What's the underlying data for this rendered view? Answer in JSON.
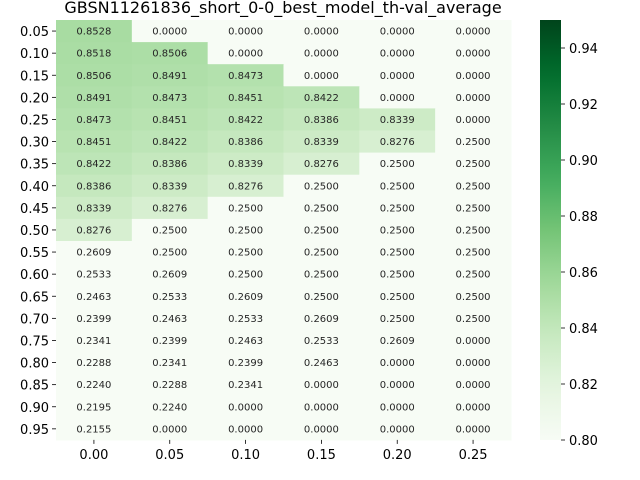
{
  "chart_data": {
    "type": "heatmap",
    "title": "GBSN11261836_short_0-0_best_model_th-val_average",
    "xlabel": "",
    "ylabel": "",
    "x_categories": [
      "0.00",
      "0.05",
      "0.10",
      "0.15",
      "0.20",
      "0.25"
    ],
    "y_categories": [
      "0.05",
      "0.10",
      "0.15",
      "0.20",
      "0.25",
      "0.30",
      "0.35",
      "0.40",
      "0.45",
      "0.50",
      "0.55",
      "0.60",
      "0.65",
      "0.70",
      "0.75",
      "0.80",
      "0.85",
      "0.90",
      "0.95"
    ],
    "values": [
      [
        "0.8528",
        "0.0000",
        "0.0000",
        "0.0000",
        "0.0000",
        "0.0000"
      ],
      [
        "0.8518",
        "0.8506",
        "0.0000",
        "0.0000",
        "0.0000",
        "0.0000"
      ],
      [
        "0.8506",
        "0.8491",
        "0.8473",
        "0.0000",
        "0.0000",
        "0.0000"
      ],
      [
        "0.8491",
        "0.8473",
        "0.8451",
        "0.8422",
        "0.0000",
        "0.0000"
      ],
      [
        "0.8473",
        "0.8451",
        "0.8422",
        "0.8386",
        "0.8339",
        "0.0000"
      ],
      [
        "0.8451",
        "0.8422",
        "0.8386",
        "0.8339",
        "0.8276",
        "0.2500"
      ],
      [
        "0.8422",
        "0.8386",
        "0.8339",
        "0.8276",
        "0.2500",
        "0.2500"
      ],
      [
        "0.8386",
        "0.8339",
        "0.8276",
        "0.2500",
        "0.2500",
        "0.2500"
      ],
      [
        "0.8339",
        "0.8276",
        "0.2500",
        "0.2500",
        "0.2500",
        "0.2500"
      ],
      [
        "0.8276",
        "0.2500",
        "0.2500",
        "0.2500",
        "0.2500",
        "0.2500"
      ],
      [
        "0.2609",
        "0.2500",
        "0.2500",
        "0.2500",
        "0.2500",
        "0.2500"
      ],
      [
        "0.2533",
        "0.2609",
        "0.2500",
        "0.2500",
        "0.2500",
        "0.2500"
      ],
      [
        "0.2463",
        "0.2533",
        "0.2609",
        "0.2500",
        "0.2500",
        "0.2500"
      ],
      [
        "0.2399",
        "0.2463",
        "0.2533",
        "0.2609",
        "0.2500",
        "0.2500"
      ],
      [
        "0.2341",
        "0.2399",
        "0.2463",
        "0.2533",
        "0.2609",
        "0.0000"
      ],
      [
        "0.2288",
        "0.2341",
        "0.2399",
        "0.2463",
        "0.0000",
        "0.0000"
      ],
      [
        "0.2240",
        "0.2288",
        "0.2341",
        "0.0000",
        "0.0000",
        "0.0000"
      ],
      [
        "0.2195",
        "0.2240",
        "0.0000",
        "0.0000",
        "0.0000",
        "0.0000"
      ],
      [
        "0.2155",
        "0.0000",
        "0.0000",
        "0.0000",
        "0.0000",
        "0.0000"
      ]
    ],
    "color_range": [
      0.8,
      0.95
    ],
    "colormap": "Greens",
    "colormap_low": "#f7fcf5",
    "colormap_high": "#00441b",
    "colorbar_ticks": [
      "0.80",
      "0.82",
      "0.84",
      "0.86",
      "0.88",
      "0.90",
      "0.92",
      "0.94"
    ],
    "grid": false
  }
}
